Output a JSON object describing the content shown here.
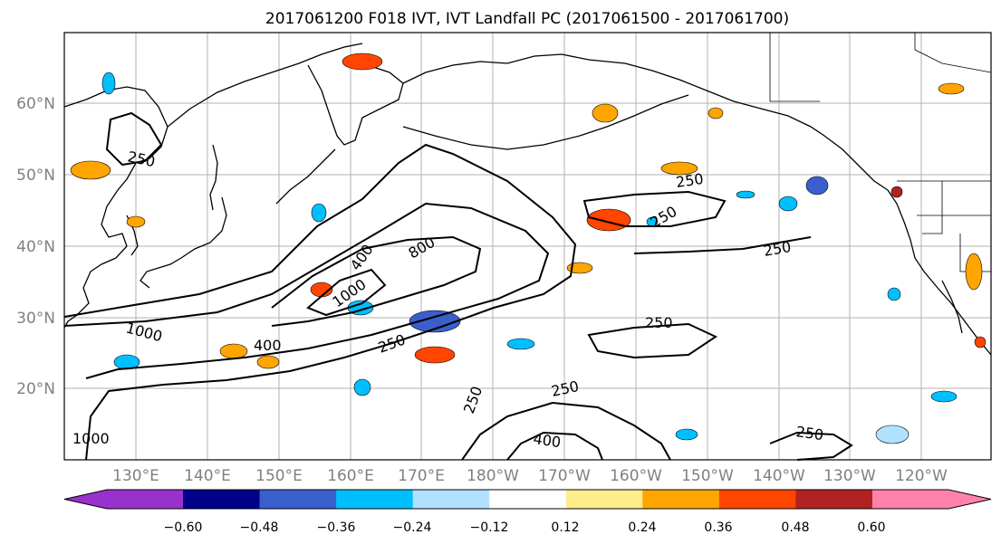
{
  "title": "2017061200 F018 IVT, IVT Landfall PC (2017061500 - 2017061700)",
  "lat_labels": [
    "60°N",
    "50°N",
    "40°N",
    "30°N",
    "20°N"
  ],
  "lon_labels": [
    "130°E",
    "140°E",
    "150°E",
    "160°E",
    "170°E",
    "180°W",
    "170°W",
    "160°W",
    "150°W",
    "140°W",
    "130°W",
    "120°W"
  ],
  "contour_labels": [
    {
      "text": "250"
    },
    {
      "text": "250"
    },
    {
      "text": "250"
    },
    {
      "text": "250"
    },
    {
      "text": "250"
    },
    {
      "text": "250"
    },
    {
      "text": "250"
    },
    {
      "text": "250"
    },
    {
      "text": "250"
    },
    {
      "text": "400"
    },
    {
      "text": "400"
    },
    {
      "text": "800"
    },
    {
      "text": "400"
    },
    {
      "text": "1000"
    },
    {
      "text": "1000"
    },
    {
      "text": "1000"
    }
  ],
  "colorbar": {
    "colors": [
      "#9932CC",
      "#00008B",
      "#3A5FCD",
      "#00BFFF",
      "#B0E2FF",
      "#FFFFFF",
      "#FFEC8B",
      "#FFA500",
      "#FF4500",
      "#B22222",
      "#FF82AB"
    ],
    "tick_labels": [
      "−0.60",
      "−0.48",
      "−0.36",
      "−0.24",
      "−0.12",
      "0.12",
      "0.24",
      "0.36",
      "0.48",
      "0.60"
    ]
  }
}
